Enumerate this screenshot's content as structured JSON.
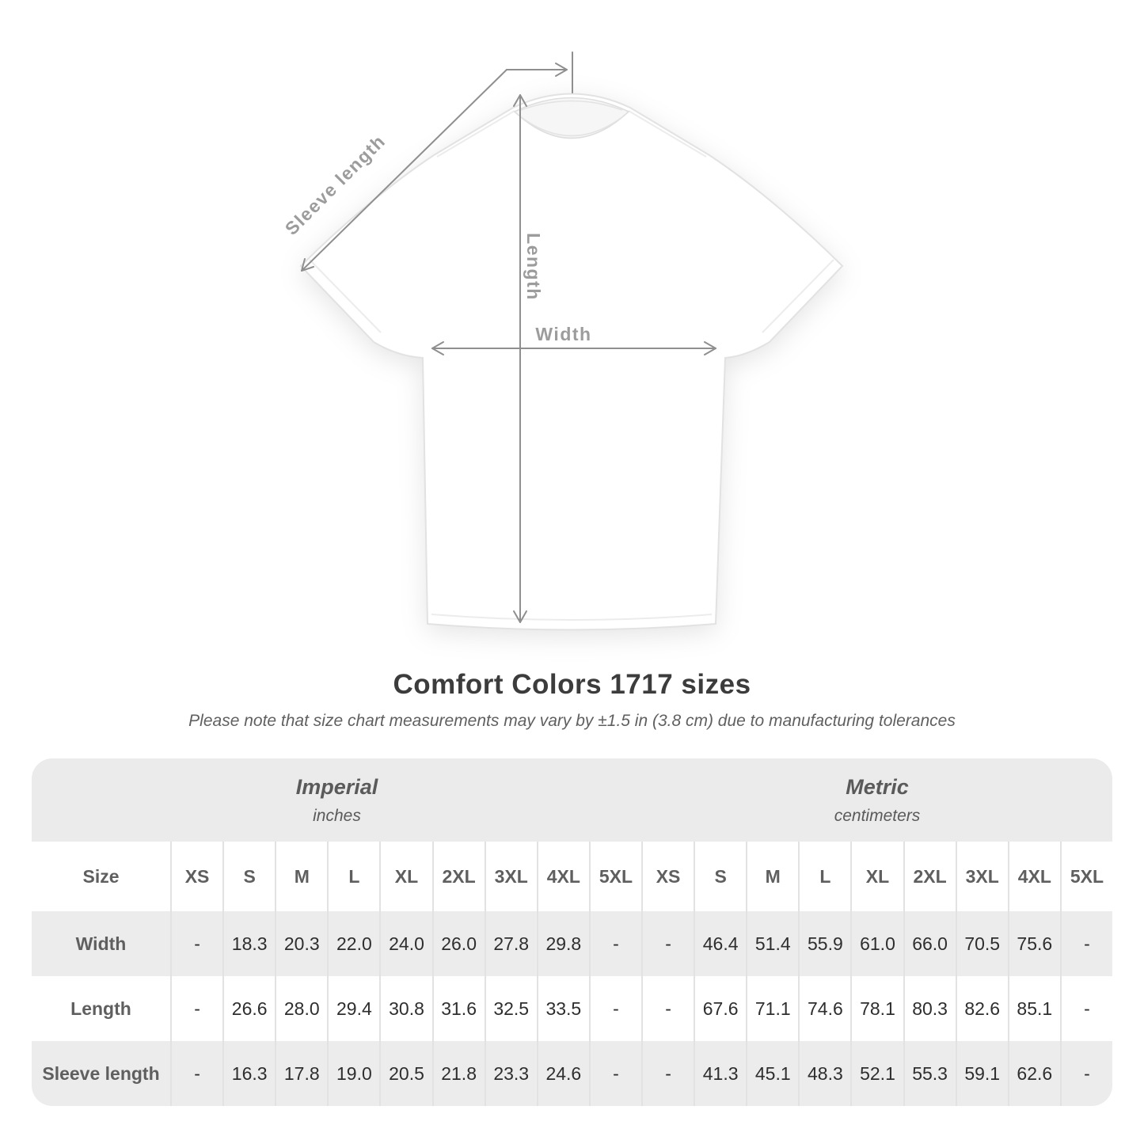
{
  "page": {
    "title": "Comfort Colors 1717 sizes",
    "subtitle": "Please note that size chart measurements may vary by ±1.5 in (3.8 cm) due to manufacturing tolerances"
  },
  "diagram": {
    "sleeve_length_label": "Sleeve length",
    "length_label": "Length",
    "width_label": "Width"
  },
  "table": {
    "size_label": "Size",
    "unit_groups": [
      {
        "name": "Imperial",
        "unit": "inches"
      },
      {
        "name": "Metric",
        "unit": "centimeters"
      }
    ],
    "sizes": [
      "XS",
      "S",
      "M",
      "L",
      "XL",
      "2XL",
      "3XL",
      "4XL",
      "5XL"
    ],
    "rows": [
      {
        "label": "Width",
        "imperial": [
          "-",
          "18.3",
          "20.3",
          "22.0",
          "24.0",
          "26.0",
          "27.8",
          "29.8",
          "-"
        ],
        "metric": [
          "-",
          "46.4",
          "51.4",
          "55.9",
          "61.0",
          "66.0",
          "70.5",
          "75.6",
          "-"
        ]
      },
      {
        "label": "Length",
        "imperial": [
          "-",
          "26.6",
          "28.0",
          "29.4",
          "30.8",
          "31.6",
          "32.5",
          "33.5",
          "-"
        ],
        "metric": [
          "-",
          "67.6",
          "71.1",
          "74.6",
          "78.1",
          "80.3",
          "82.6",
          "85.1",
          "-"
        ]
      },
      {
        "label": "Sleeve length",
        "imperial": [
          "-",
          "16.3",
          "17.8",
          "19.0",
          "20.5",
          "21.8",
          "23.3",
          "24.6",
          "-"
        ],
        "metric": [
          "-",
          "41.3",
          "45.1",
          "48.3",
          "52.1",
          "55.3",
          "59.1",
          "62.6",
          "-"
        ]
      }
    ]
  },
  "colors": {
    "band_gray": "#ebebeb",
    "row_gray": "#ececec",
    "divider_gray": "#e2e2e2",
    "measure_line_gray": "#8f8f8f",
    "measure_label_gray": "#9c9c9c",
    "title_text": "#3c3c3c"
  }
}
